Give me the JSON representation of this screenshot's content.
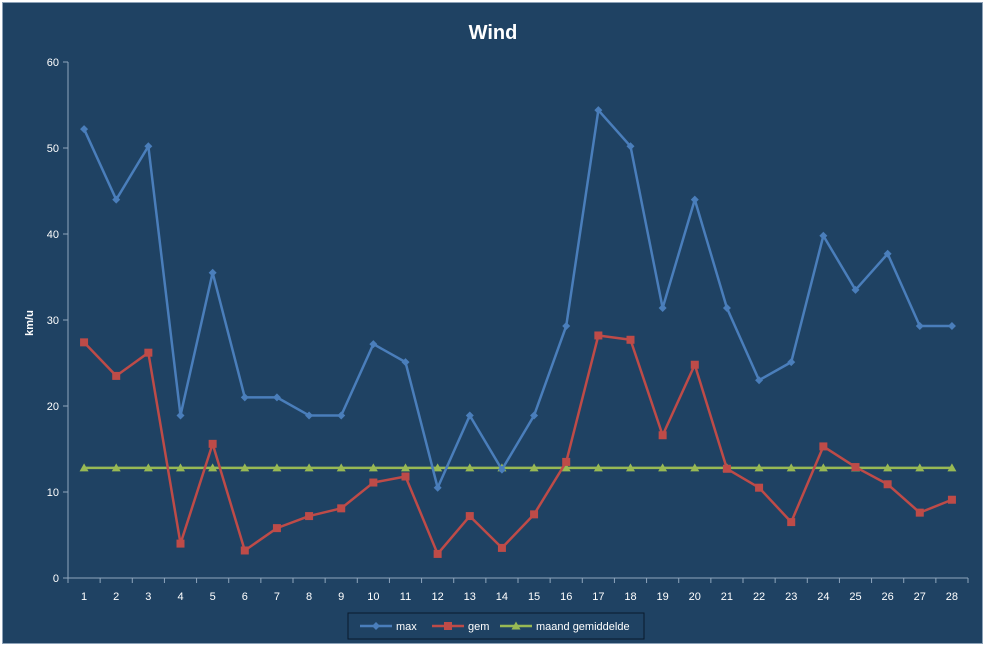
{
  "chart_data": {
    "type": "line",
    "title": "Wind",
    "xlabel": "",
    "ylabel": "km/u",
    "ylim": [
      0,
      60
    ],
    "yticks": [
      0,
      10,
      20,
      30,
      40,
      50,
      60
    ],
    "grid": false,
    "legend_position": "bottom",
    "categories": [
      "1",
      "2",
      "3",
      "4",
      "5",
      "6",
      "7",
      "8",
      "9",
      "10",
      "11",
      "12",
      "13",
      "14",
      "15",
      "16",
      "17",
      "18",
      "19",
      "20",
      "21",
      "22",
      "23",
      "24",
      "25",
      "26",
      "27",
      "28"
    ],
    "series": [
      {
        "name": "max",
        "color": "#4a7ebb",
        "marker": "diamond",
        "values": [
          52.2,
          44.0,
          50.2,
          18.9,
          35.5,
          21.0,
          21.0,
          18.9,
          18.9,
          27.2,
          25.1,
          10.5,
          18.9,
          12.6,
          18.9,
          29.3,
          54.4,
          50.2,
          31.4,
          44.0,
          31.4,
          23.0,
          25.1,
          39.8,
          33.5,
          37.7,
          29.3,
          29.3
        ]
      },
      {
        "name": "gem",
        "color": "#be4b48",
        "marker": "square",
        "values": [
          27.4,
          23.5,
          26.2,
          4.0,
          15.6,
          3.2,
          5.8,
          7.2,
          8.1,
          11.1,
          11.8,
          2.8,
          7.2,
          3.5,
          7.4,
          13.5,
          28.2,
          27.7,
          16.6,
          24.8,
          12.7,
          10.5,
          6.5,
          15.3,
          12.9,
          10.9,
          7.6,
          9.1
        ]
      },
      {
        "name": "maand gemiddelde",
        "color": "#98b954",
        "marker": "triangle",
        "values": [
          12.8,
          12.8,
          12.8,
          12.8,
          12.8,
          12.8,
          12.8,
          12.8,
          12.8,
          12.8,
          12.8,
          12.8,
          12.8,
          12.8,
          12.8,
          12.8,
          12.8,
          12.8,
          12.8,
          12.8,
          12.8,
          12.8,
          12.8,
          12.8,
          12.8,
          12.8,
          12.8,
          12.8
        ]
      }
    ]
  }
}
